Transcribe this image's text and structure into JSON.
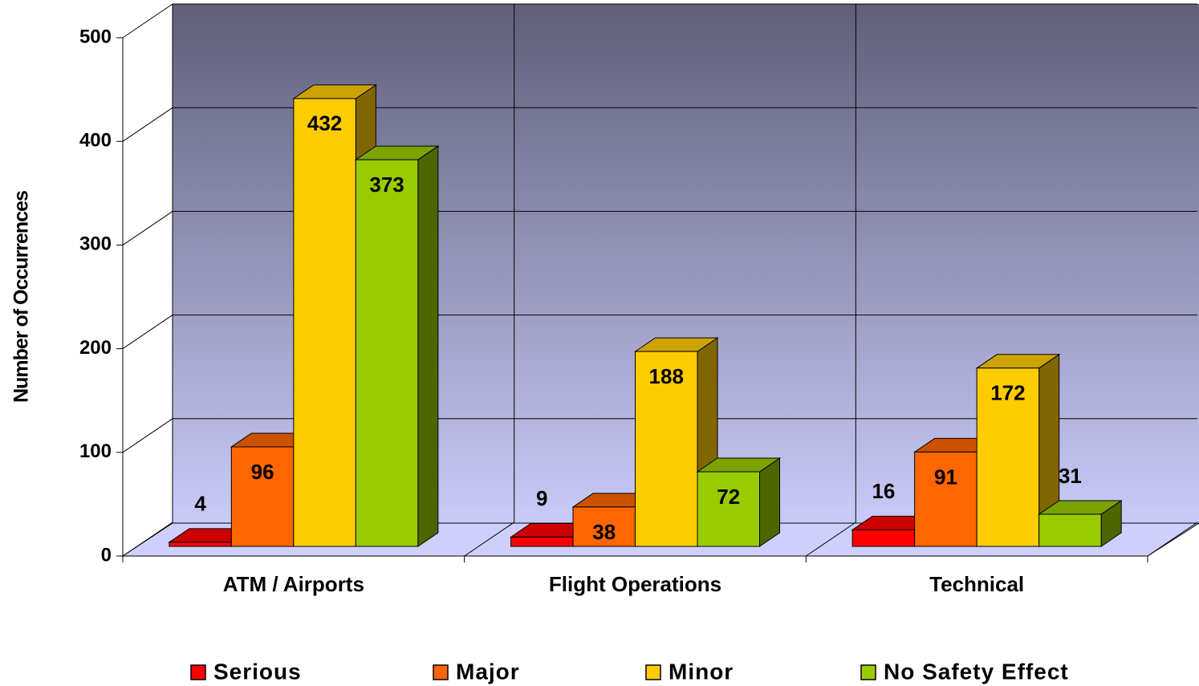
{
  "chart_data": {
    "type": "bar3d",
    "y_axis_label": "Number of Occurrences",
    "categories": [
      "ATM / Airports",
      "Flight Operations",
      "Technical"
    ],
    "series": [
      {
        "name": "Serious",
        "color": "#ff0000",
        "values": [
          4,
          9,
          16
        ]
      },
      {
        "name": "Major",
        "color": "#ff6600",
        "values": [
          96,
          38,
          91
        ]
      },
      {
        "name": "Minor",
        "color": "#ffcc00",
        "values": [
          432,
          188,
          172
        ]
      },
      {
        "name": "No Safety Effect",
        "color": "#99cc00",
        "values": [
          373,
          72,
          31
        ]
      }
    ],
    "ylim": [
      0,
      500
    ],
    "yticks": [
      0,
      100,
      200,
      300,
      400,
      500
    ],
    "grid": true,
    "legend": "bottom"
  }
}
